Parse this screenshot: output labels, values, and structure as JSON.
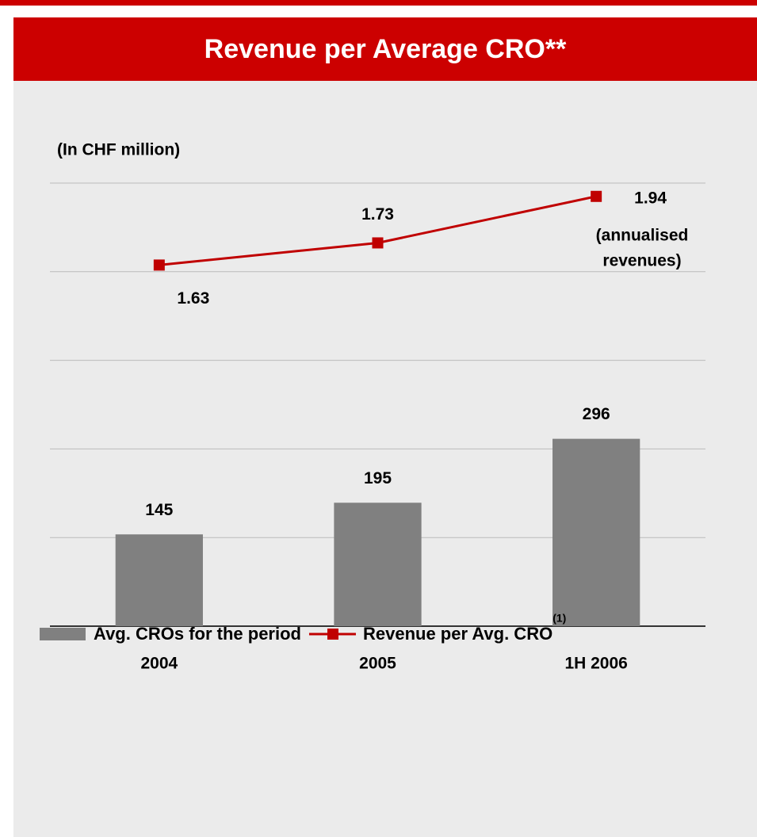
{
  "chart_data": {
    "type": "bar_line",
    "title": "Revenue per Average CRO**",
    "subtitle": "(In CHF million)",
    "categories": [
      "2004",
      "2005",
      "1H 2006"
    ],
    "series": [
      {
        "name": "Avg. CROs for the period",
        "type": "bar",
        "color": "#808080",
        "values": [
          145,
          195,
          296
        ]
      },
      {
        "name": "Revenue per Avg. CRO",
        "type": "line",
        "axis": "y2",
        "color": "#c00000",
        "values": [
          1.63,
          1.73,
          1.94
        ]
      }
    ],
    "legend_note": "(1)",
    "annotation": [
      "(annualised",
      "revenues)"
    ],
    "ylim": [
      0,
      700
    ],
    "yticks": [
      0,
      140,
      280,
      420,
      560,
      700
    ],
    "y2lim": [
      0,
      2
    ],
    "grid": true
  }
}
